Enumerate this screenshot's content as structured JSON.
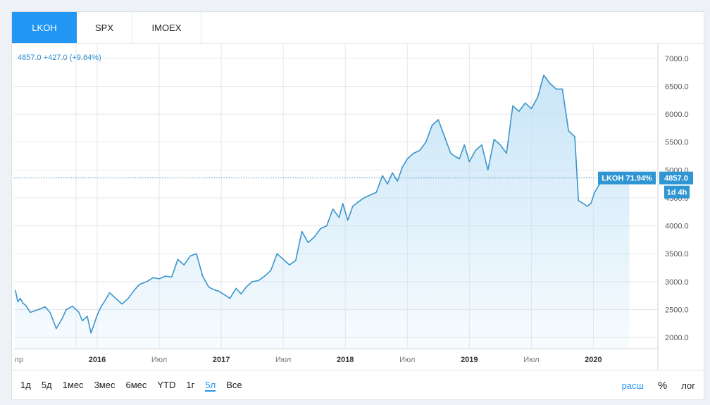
{
  "tabs": [
    {
      "label": "LKOH",
      "active": true
    },
    {
      "label": "SPX",
      "active": false
    },
    {
      "label": "IMOEX",
      "active": false
    }
  ],
  "info": {
    "text": "4857.0  +427.0 (+9.64%)"
  },
  "price_badge": {
    "name": "LKOH 71.94%",
    "value": "4857.0",
    "interval": "1d 4h"
  },
  "periods": [
    "1д",
    "5д",
    "1мес",
    "3мес",
    "6мес",
    "YTD",
    "1г",
    "5л",
    "Все"
  ],
  "active_period": "5л",
  "scales": [
    {
      "label": "расш",
      "accent": true
    },
    {
      "label": "%",
      "accent": false
    },
    {
      "label": "лог",
      "accent": false
    }
  ],
  "colors": {
    "accent": "#2196f3",
    "line": "#3a95c9",
    "fill": "#bfe1f6",
    "grid": "#e4e7eb"
  },
  "chart_data": {
    "type": "area",
    "series": [
      {
        "name": "LKOH",
        "x": [
          2015.34,
          2015.36,
          2015.38,
          2015.4,
          2015.43,
          2015.46,
          2015.5,
          2015.54,
          2015.58,
          2015.62,
          2015.67,
          2015.72,
          2015.75,
          2015.8,
          2015.85,
          2015.88,
          2015.92,
          2015.95,
          2016.0,
          2016.03,
          2016.06,
          2016.1,
          2016.15,
          2016.2,
          2016.25,
          2016.3,
          2016.34,
          2016.4,
          2016.45,
          2016.5,
          2016.55,
          2016.6,
          2016.65,
          2016.7,
          2016.75,
          2016.8,
          2016.85,
          2016.9,
          2016.95,
          2016.98,
          2017.03,
          2017.07,
          2017.12,
          2017.16,
          2017.2,
          2017.25,
          2017.3,
          2017.35,
          2017.4,
          2017.45,
          2017.5,
          2017.55,
          2017.6,
          2017.65,
          2017.7,
          2017.75,
          2017.8,
          2017.85,
          2017.9,
          2017.95,
          2017.98,
          2018.02,
          2018.06,
          2018.1,
          2018.15,
          2018.2,
          2018.25,
          2018.3,
          2018.34,
          2018.38,
          2018.42,
          2018.46,
          2018.5,
          2018.55,
          2018.6,
          2018.65,
          2018.7,
          2018.75,
          2018.8,
          2018.85,
          2018.88,
          2018.92,
          2018.96,
          2019.0,
          2019.05,
          2019.1,
          2019.15,
          2019.2,
          2019.25,
          2019.3,
          2019.35,
          2019.4,
          2019.45,
          2019.5,
          2019.55,
          2019.6,
          2019.65,
          2019.7,
          2019.75,
          2019.8,
          2019.85,
          2019.88,
          2019.92,
          2019.95,
          2019.98,
          2020.01,
          2020.05,
          2020.08,
          2020.12,
          2020.14,
          2020.16,
          2020.18,
          2020.2,
          2020.23,
          2020.26,
          2020.29
        ],
        "values": [
          2850,
          2640,
          2700,
          2620,
          2560,
          2450,
          2480,
          2510,
          2550,
          2450,
          2160,
          2350,
          2500,
          2560,
          2460,
          2300,
          2380,
          2080,
          2400,
          2550,
          2650,
          2800,
          2700,
          2600,
          2700,
          2850,
          2950,
          3000,
          3070,
          3050,
          3100,
          3080,
          3400,
          3300,
          3460,
          3500,
          3100,
          2900,
          2850,
          2830,
          2760,
          2700,
          2880,
          2780,
          2900,
          3000,
          3020,
          3100,
          3200,
          3500,
          3400,
          3300,
          3380,
          3900,
          3700,
          3800,
          3950,
          4000,
          4300,
          4150,
          4400,
          4100,
          4350,
          4420,
          4500,
          4550,
          4600,
          4900,
          4750,
          4950,
          4800,
          5050,
          5200,
          5300,
          5350,
          5500,
          5800,
          5900,
          5600,
          5300,
          5250,
          5200,
          5450,
          5150,
          5350,
          5450,
          5000,
          5550,
          5450,
          5300,
          6150,
          6050,
          6200,
          6100,
          6300,
          6700,
          6550,
          6450,
          6450,
          5700,
          5600,
          4450,
          4400,
          4350,
          4400,
          4600,
          4750,
          4850,
          4857,
          4857,
          4857,
          4857,
          4857,
          4857,
          4857,
          4857
        ]
      }
    ],
    "ylim": [
      1800,
      7250
    ],
    "y_ticks": [
      2000,
      2500,
      3000,
      3500,
      4000,
      4500,
      5000,
      5500,
      6000,
      6500,
      7000
    ],
    "y_tick_labels": [
      "2000.0",
      "2500.0",
      "3000.0",
      "3500.0",
      "4000.0",
      "4500.0",
      "5000.0",
      "5500.0",
      "6000.0",
      "6500.0",
      "7000.0"
    ],
    "x_ticks": [
      2015.83,
      2016.0,
      2016.5,
      2017.0,
      2017.5,
      2018.0,
      2018.5,
      2019.0,
      2019.5,
      2020.0
    ],
    "x_tick_labels": [
      "пр",
      "2016",
      "Июл",
      "2017",
      "Июл",
      "2018",
      "Июл",
      "2019",
      "Июл",
      "2020"
    ],
    "x_bold": [
      false,
      true,
      false,
      true,
      false,
      true,
      false,
      true,
      false,
      true
    ],
    "last_value": 4857.0,
    "grid": true
  }
}
